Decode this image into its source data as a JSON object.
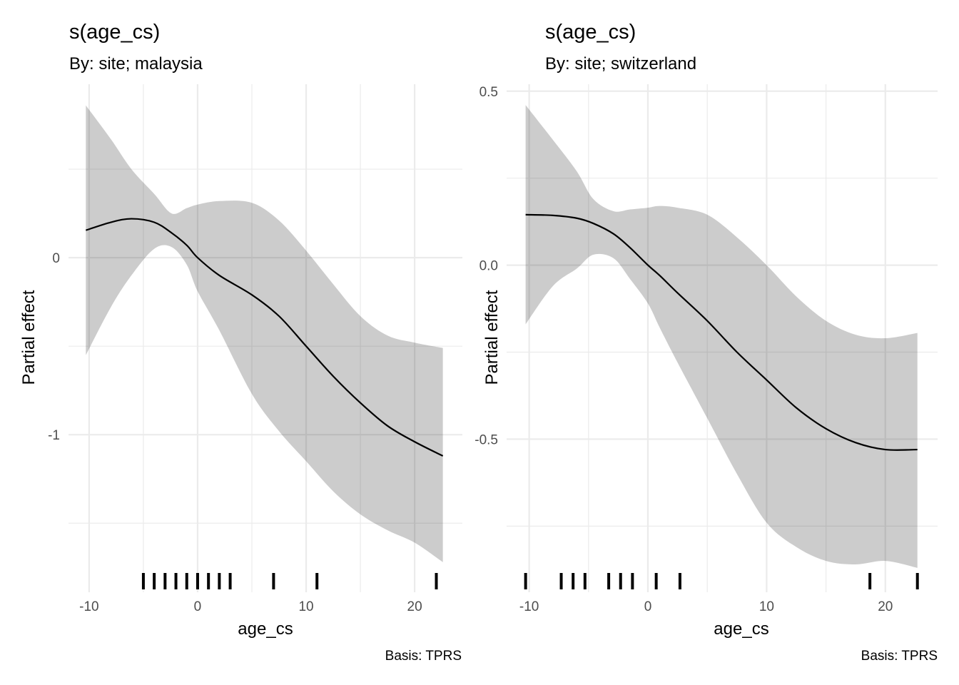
{
  "chart_data": [
    {
      "type": "line",
      "title": "s(age_cs)",
      "subtitle": "By: site; malaysia",
      "xlabel": "age_cs",
      "ylabel": "Partial effect",
      "caption": "Basis: TPRS",
      "xlim": [
        -11.9,
        24.4
      ],
      "ylim": [
        -1.89,
        0.98
      ],
      "x_ticks": [
        -10,
        0,
        10,
        20
      ],
      "x_tick_labels": [
        "-10",
        "0",
        "10",
        "20"
      ],
      "x_minor": [
        -5,
        5,
        15
      ],
      "y_ticks": [
        0,
        -1
      ],
      "y_tick_labels": [
        "0",
        "-1"
      ],
      "y_minor": [
        0.5,
        -0.5,
        -1.5
      ],
      "grid": true,
      "series": [
        {
          "name": "estimate",
          "x": [
            -10.3,
            -8,
            -6.1,
            -4,
            -2.4,
            -1,
            0,
            2,
            5,
            7.5,
            10,
            12.5,
            15,
            17.5,
            20,
            22.6
          ],
          "y": [
            0.155,
            0.2,
            0.22,
            0.2,
            0.14,
            0.07,
            0.0,
            -0.1,
            -0.21,
            -0.33,
            -0.5,
            -0.67,
            -0.82,
            -0.95,
            -1.04,
            -1.12
          ],
          "lower": [
            -0.55,
            -0.28,
            -0.1,
            0.05,
            0.06,
            -0.04,
            -0.19,
            -0.41,
            -0.77,
            -0.98,
            -1.15,
            -1.32,
            -1.45,
            -1.54,
            -1.61,
            -1.72
          ],
          "upper": [
            0.86,
            0.67,
            0.5,
            0.36,
            0.25,
            0.28,
            0.3,
            0.32,
            0.31,
            0.21,
            0.04,
            -0.15,
            -0.33,
            -0.44,
            -0.48,
            -0.51
          ]
        }
      ],
      "rug": [
        -5,
        -4,
        -3,
        -2,
        -1,
        0,
        1,
        2,
        3,
        7,
        11,
        22
      ]
    },
    {
      "type": "line",
      "title": "s(age_cs)",
      "subtitle": "By: site; switzerland",
      "xlabel": "age_cs",
      "ylabel": "Partial effect",
      "caption": "Basis: TPRS",
      "xlim": [
        -11.9,
        24.4
      ],
      "ylim": [
        -0.94,
        0.52
      ],
      "x_ticks": [
        -10,
        0,
        10,
        20
      ],
      "x_tick_labels": [
        "-10",
        "0",
        "10",
        "20"
      ],
      "x_minor": [
        -5,
        5,
        15
      ],
      "y_ticks": [
        0.5,
        0.0,
        -0.5
      ],
      "y_tick_labels": [
        "0.5",
        "0.0",
        "-0.5"
      ],
      "y_minor": [
        0.25,
        -0.25,
        -0.75
      ],
      "grid": true,
      "series": [
        {
          "name": "estimate",
          "x": [
            -10.3,
            -8,
            -6,
            -4.6,
            -2.9,
            -1.5,
            0,
            1,
            2.5,
            5,
            7.5,
            10,
            12.5,
            15,
            17.5,
            20,
            22.7
          ],
          "y": [
            0.145,
            0.143,
            0.135,
            0.12,
            0.09,
            0.05,
            0.0,
            -0.03,
            -0.08,
            -0.16,
            -0.25,
            -0.33,
            -0.41,
            -0.47,
            -0.51,
            -0.53,
            -0.53
          ],
          "lower": [
            -0.17,
            -0.06,
            -0.01,
            0.03,
            0.02,
            -0.04,
            -0.11,
            -0.18,
            -0.28,
            -0.44,
            -0.6,
            -0.74,
            -0.81,
            -0.85,
            -0.86,
            -0.85,
            -0.87
          ],
          "upper": [
            0.46,
            0.36,
            0.27,
            0.19,
            0.155,
            0.16,
            0.165,
            0.17,
            0.165,
            0.145,
            0.08,
            0.0,
            -0.09,
            -0.16,
            -0.2,
            -0.21,
            -0.195
          ]
        }
      ],
      "rug": [
        -10.3,
        -7.3,
        -6.3,
        -5.3,
        -3.3,
        -2.3,
        -1.3,
        0.7,
        2.7,
        18.7,
        22.7
      ]
    }
  ]
}
